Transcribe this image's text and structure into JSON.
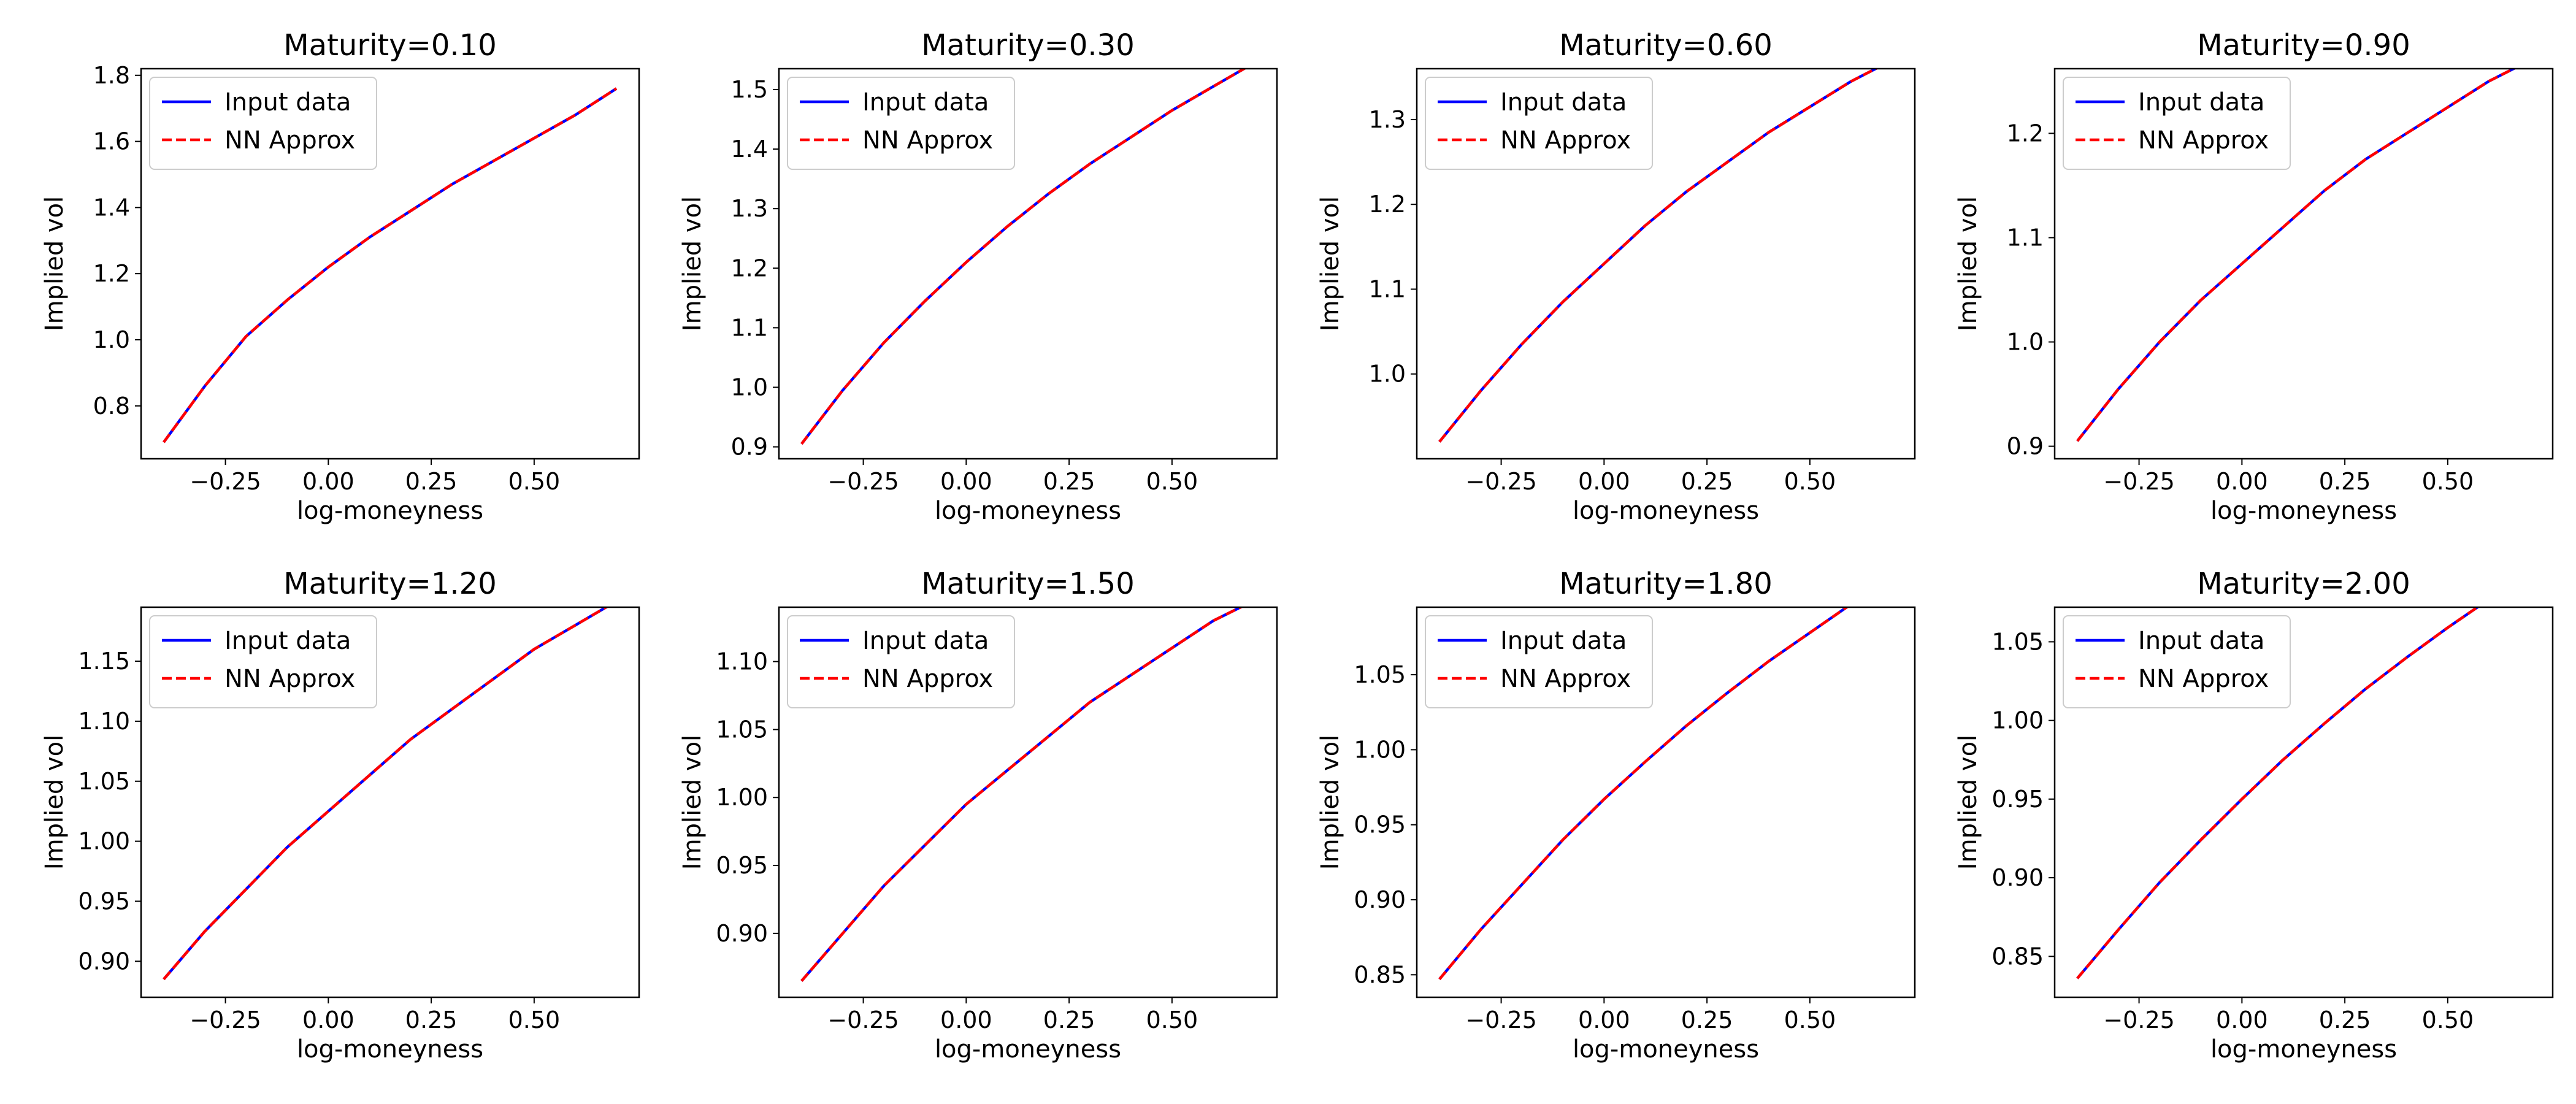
{
  "colors": {
    "input_data": "#0000ff",
    "nn_approx": "#ff0000"
  },
  "chart_data": [
    {
      "type": "line",
      "title": "Maturity=0.10",
      "xlabel": "log-moneyness",
      "ylabel": "Implied vol",
      "xlim": [
        -0.455,
        0.755
      ],
      "ylim": [
        0.64,
        1.82
      ],
      "xticks": [
        -0.25,
        0.0,
        0.25,
        0.5
      ],
      "xtick_labels": [
        "−0.25",
        "0.00",
        "0.25",
        "0.50"
      ],
      "yticks": [
        0.8,
        1.0,
        1.2,
        1.4,
        1.6,
        1.8
      ],
      "ytick_labels": [
        "0.8",
        "1.0",
        "1.2",
        "1.4",
        "1.6",
        "1.8"
      ],
      "legend": "top-left",
      "grid": false,
      "x": [
        -0.4,
        -0.3,
        -0.2,
        -0.1,
        0.0,
        0.1,
        0.2,
        0.3,
        0.4,
        0.5,
        0.6,
        0.7
      ],
      "series": [
        {
          "name": "Input data",
          "style": "solid",
          "values": [
            0.69,
            0.86,
            1.01,
            1.12,
            1.22,
            1.31,
            1.39,
            1.47,
            1.54,
            1.61,
            1.68,
            1.76
          ]
        },
        {
          "name": "NN Approx",
          "style": "dashed",
          "values": [
            0.69,
            0.86,
            1.01,
            1.12,
            1.22,
            1.31,
            1.39,
            1.47,
            1.54,
            1.61,
            1.68,
            1.76
          ]
        }
      ]
    },
    {
      "type": "line",
      "title": "Maturity=0.30",
      "xlabel": "log-moneyness",
      "ylabel": "Implied vol",
      "xlim": [
        -0.455,
        0.755
      ],
      "ylim": [
        0.88,
        1.535
      ],
      "xticks": [
        -0.25,
        0.0,
        0.25,
        0.5
      ],
      "xtick_labels": [
        "−0.25",
        "0.00",
        "0.25",
        "0.50"
      ],
      "yticks": [
        0.9,
        1.0,
        1.1,
        1.2,
        1.3,
        1.4,
        1.5
      ],
      "ytick_labels": [
        "0.9",
        "1.0",
        "1.1",
        "1.2",
        "1.3",
        "1.4",
        "1.5"
      ],
      "legend": "top-left",
      "grid": false,
      "x": [
        -0.4,
        -0.3,
        -0.2,
        -0.1,
        0.0,
        0.1,
        0.2,
        0.3,
        0.4,
        0.5,
        0.6,
        0.7
      ],
      "series": [
        {
          "name": "Input data",
          "style": "solid",
          "values": [
            0.905,
            0.995,
            1.075,
            1.145,
            1.21,
            1.27,
            1.325,
            1.375,
            1.42,
            1.465,
            1.505,
            1.545
          ]
        },
        {
          "name": "NN Approx",
          "style": "dashed",
          "values": [
            0.905,
            0.995,
            1.075,
            1.145,
            1.21,
            1.27,
            1.325,
            1.375,
            1.42,
            1.465,
            1.505,
            1.545
          ]
        }
      ]
    },
    {
      "type": "line",
      "title": "Maturity=0.60",
      "xlabel": "log-moneyness",
      "ylabel": "Implied vol",
      "xlim": [
        -0.455,
        0.755
      ],
      "ylim": [
        0.9,
        1.36
      ],
      "xticks": [
        -0.25,
        0.0,
        0.25,
        0.5
      ],
      "xtick_labels": [
        "−0.25",
        "0.00",
        "0.25",
        "0.50"
      ],
      "yticks": [
        1.0,
        1.1,
        1.2,
        1.3
      ],
      "ytick_labels": [
        "1.0",
        "1.1",
        "1.2",
        "1.3"
      ],
      "legend": "top-left",
      "grid": false,
      "x": [
        -0.4,
        -0.3,
        -0.2,
        -0.1,
        0.0,
        0.1,
        0.2,
        0.3,
        0.4,
        0.5,
        0.6,
        0.7
      ],
      "series": [
        {
          "name": "Input data",
          "style": "solid",
          "values": [
            0.92,
            0.98,
            1.035,
            1.085,
            1.13,
            1.175,
            1.215,
            1.25,
            1.285,
            1.315,
            1.345,
            1.37
          ]
        },
        {
          "name": "NN Approx",
          "style": "dashed",
          "values": [
            0.92,
            0.98,
            1.035,
            1.085,
            1.13,
            1.175,
            1.215,
            1.25,
            1.285,
            1.315,
            1.345,
            1.37
          ]
        }
      ]
    },
    {
      "type": "line",
      "title": "Maturity=0.90",
      "xlabel": "log-moneyness",
      "ylabel": "Implied vol",
      "xlim": [
        -0.455,
        0.755
      ],
      "ylim": [
        0.888,
        1.262
      ],
      "xticks": [
        -0.25,
        0.0,
        0.25,
        0.5
      ],
      "xtick_labels": [
        "−0.25",
        "0.00",
        "0.25",
        "0.50"
      ],
      "yticks": [
        0.9,
        1.0,
        1.1,
        1.2
      ],
      "ytick_labels": [
        "0.9",
        "1.0",
        "1.1",
        "1.2"
      ],
      "legend": "top-left",
      "grid": false,
      "x": [
        -0.4,
        -0.3,
        -0.2,
        -0.1,
        0.0,
        0.1,
        0.2,
        0.3,
        0.4,
        0.5,
        0.6,
        0.7
      ],
      "series": [
        {
          "name": "Input data",
          "style": "solid",
          "values": [
            0.905,
            0.955,
            1.0,
            1.04,
            1.075,
            1.11,
            1.145,
            1.175,
            1.2,
            1.225,
            1.25,
            1.27
          ]
        },
        {
          "name": "NN Approx",
          "style": "dashed",
          "values": [
            0.905,
            0.955,
            1.0,
            1.04,
            1.075,
            1.11,
            1.145,
            1.175,
            1.2,
            1.225,
            1.25,
            1.27
          ]
        }
      ]
    },
    {
      "type": "line",
      "title": "Maturity=1.20",
      "xlabel": "log-moneyness",
      "ylabel": "Implied vol",
      "xlim": [
        -0.455,
        0.755
      ],
      "ylim": [
        0.87,
        1.195
      ],
      "xticks": [
        -0.25,
        0.0,
        0.25,
        0.5
      ],
      "xtick_labels": [
        "−0.25",
        "0.00",
        "0.25",
        "0.50"
      ],
      "yticks": [
        0.9,
        0.95,
        1.0,
        1.05,
        1.1,
        1.15
      ],
      "ytick_labels": [
        "0.90",
        "0.95",
        "1.00",
        "1.05",
        "1.10",
        "1.15"
      ],
      "legend": "top-left",
      "grid": false,
      "x": [
        -0.4,
        -0.3,
        -0.2,
        -0.1,
        0.0,
        0.1,
        0.2,
        0.3,
        0.4,
        0.5,
        0.6,
        0.7
      ],
      "series": [
        {
          "name": "Input data",
          "style": "solid",
          "values": [
            0.885,
            0.925,
            0.96,
            0.995,
            1.025,
            1.055,
            1.085,
            1.11,
            1.135,
            1.16,
            1.18,
            1.2
          ]
        },
        {
          "name": "NN Approx",
          "style": "dashed",
          "values": [
            0.885,
            0.925,
            0.96,
            0.995,
            1.025,
            1.055,
            1.085,
            1.11,
            1.135,
            1.16,
            1.18,
            1.2
          ]
        }
      ]
    },
    {
      "type": "line",
      "title": "Maturity=1.50",
      "xlabel": "log-moneyness",
      "ylabel": "Implied vol",
      "xlim": [
        -0.455,
        0.755
      ],
      "ylim": [
        0.853,
        1.14
      ],
      "xticks": [
        -0.25,
        0.0,
        0.25,
        0.5
      ],
      "xtick_labels": [
        "−0.25",
        "0.00",
        "0.25",
        "0.50"
      ],
      "yticks": [
        0.9,
        0.95,
        1.0,
        1.05,
        1.1
      ],
      "ytick_labels": [
        "0.90",
        "0.95",
        "1.00",
        "1.05",
        "1.10"
      ],
      "legend": "top-left",
      "grid": false,
      "x": [
        -0.4,
        -0.3,
        -0.2,
        -0.1,
        0.0,
        0.1,
        0.2,
        0.3,
        0.4,
        0.5,
        0.6,
        0.7
      ],
      "series": [
        {
          "name": "Input data",
          "style": "solid",
          "values": [
            0.865,
            0.9,
            0.935,
            0.965,
            0.995,
            1.02,
            1.045,
            1.07,
            1.09,
            1.11,
            1.13,
            1.145
          ]
        },
        {
          "name": "NN Approx",
          "style": "dashed",
          "values": [
            0.865,
            0.9,
            0.935,
            0.965,
            0.995,
            1.02,
            1.045,
            1.07,
            1.09,
            1.11,
            1.13,
            1.145
          ]
        }
      ]
    },
    {
      "type": "line",
      "title": "Maturity=1.80",
      "xlabel": "log-moneyness",
      "ylabel": "Implied vol",
      "xlim": [
        -0.455,
        0.755
      ],
      "ylim": [
        0.835,
        1.095
      ],
      "xticks": [
        -0.25,
        0.0,
        0.25,
        0.5
      ],
      "xtick_labels": [
        "−0.25",
        "0.00",
        "0.25",
        "0.50"
      ],
      "yticks": [
        0.85,
        0.9,
        0.95,
        1.0,
        1.05
      ],
      "ytick_labels": [
        "0.85",
        "0.90",
        "0.95",
        "1.00",
        "1.05"
      ],
      "legend": "top-left",
      "grid": false,
      "x": [
        -0.4,
        -0.3,
        -0.2,
        -0.1,
        0.0,
        0.1,
        0.2,
        0.3,
        0.4,
        0.5,
        0.6,
        0.7
      ],
      "series": [
        {
          "name": "Input data",
          "style": "solid",
          "values": [
            0.847,
            0.88,
            0.91,
            0.94,
            0.967,
            0.992,
            1.016,
            1.038,
            1.059,
            1.078,
            1.097,
            1.114
          ]
        },
        {
          "name": "NN Approx",
          "style": "dashed",
          "values": [
            0.847,
            0.88,
            0.91,
            0.94,
            0.967,
            0.992,
            1.016,
            1.038,
            1.059,
            1.078,
            1.097,
            1.114
          ]
        }
      ]
    },
    {
      "type": "line",
      "title": "Maturity=2.00",
      "xlabel": "log-moneyness",
      "ylabel": "Implied vol",
      "xlim": [
        -0.455,
        0.755
      ],
      "ylim": [
        0.824,
        1.072
      ],
      "xticks": [
        -0.25,
        0.0,
        0.25,
        0.5
      ],
      "xtick_labels": [
        "−0.25",
        "0.00",
        "0.25",
        "0.50"
      ],
      "yticks": [
        0.85,
        0.9,
        0.95,
        1.0,
        1.05
      ],
      "ytick_labels": [
        "0.85",
        "0.90",
        "0.95",
        "1.00",
        "1.05"
      ],
      "legend": "top-left",
      "grid": false,
      "x": [
        -0.4,
        -0.3,
        -0.2,
        -0.1,
        0.0,
        0.1,
        0.2,
        0.3,
        0.4,
        0.5,
        0.6,
        0.7
      ],
      "series": [
        {
          "name": "Input data",
          "style": "solid",
          "values": [
            0.836,
            0.867,
            0.897,
            0.924,
            0.95,
            0.975,
            0.998,
            1.02,
            1.04,
            1.059,
            1.077,
            1.094
          ]
        },
        {
          "name": "NN Approx",
          "style": "dashed",
          "values": [
            0.836,
            0.867,
            0.897,
            0.924,
            0.95,
            0.975,
            0.998,
            1.02,
            1.04,
            1.059,
            1.077,
            1.094
          ]
        }
      ]
    }
  ]
}
